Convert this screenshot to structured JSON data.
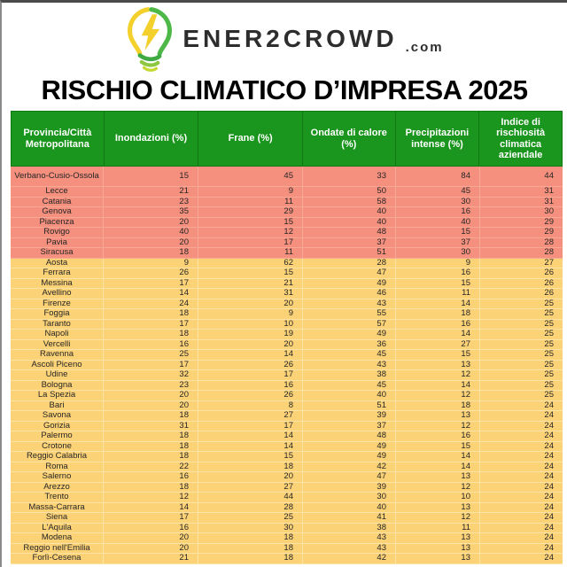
{
  "logo": {
    "brand": "ENER2CROWD",
    "suffix": ".com",
    "icon": "lightbulb-leaf-icon"
  },
  "title": "RISCHIO CLIMATICO D’IMPRESA 2025",
  "colors": {
    "header_green": "#1a951d",
    "high_risk_band": "#f5907e",
    "medium_risk_band": "#fcd277",
    "logo_yellow": "#f3d02c",
    "logo_green": "#4db848"
  },
  "table": {
    "columns": [
      "Provincia/Città Metropolitana",
      "Inondazioni (%)",
      "Frane (%)",
      "Ondate di calore (%)",
      "Precipitazioni intense (%)",
      "Indice di rischiosità climatica aziendale"
    ],
    "rows": [
      {
        "provincia": "Verbano-Cusio-Ossola",
        "inondazioni": 15,
        "frane": 45,
        "ondate": 33,
        "precipitazioni": 84,
        "indice": 44,
        "band": "high",
        "tall": true
      },
      {
        "provincia": "Lecce",
        "inondazioni": 21,
        "frane": 9,
        "ondate": 50,
        "precipitazioni": 45,
        "indice": 31,
        "band": "high"
      },
      {
        "provincia": "Catania",
        "inondazioni": 23,
        "frane": 11,
        "ondate": 58,
        "precipitazioni": 30,
        "indice": 31,
        "band": "high"
      },
      {
        "provincia": "Genova",
        "inondazioni": 35,
        "frane": 29,
        "ondate": 40,
        "precipitazioni": 16,
        "indice": 30,
        "band": "high"
      },
      {
        "provincia": "Piacenza",
        "inondazioni": 20,
        "frane": 15,
        "ondate": 40,
        "precipitazioni": 40,
        "indice": 29,
        "band": "high"
      },
      {
        "provincia": "Rovigo",
        "inondazioni": 40,
        "frane": 12,
        "ondate": 48,
        "precipitazioni": 15,
        "indice": 29,
        "band": "high"
      },
      {
        "provincia": "Pavia",
        "inondazioni": 20,
        "frane": 17,
        "ondate": 37,
        "precipitazioni": 37,
        "indice": 28,
        "band": "high"
      },
      {
        "provincia": "Siracusa",
        "inondazioni": 18,
        "frane": 11,
        "ondate": 51,
        "precipitazioni": 30,
        "indice": 28,
        "band": "high"
      },
      {
        "provincia": "Aosta",
        "inondazioni": 9,
        "frane": 62,
        "ondate": 28,
        "precipitazioni": 9,
        "indice": 27,
        "band": "medium"
      },
      {
        "provincia": "Ferrara",
        "inondazioni": 26,
        "frane": 15,
        "ondate": 47,
        "precipitazioni": 16,
        "indice": 26,
        "band": "medium"
      },
      {
        "provincia": "Messina",
        "inondazioni": 17,
        "frane": 21,
        "ondate": 49,
        "precipitazioni": 15,
        "indice": 26,
        "band": "medium"
      },
      {
        "provincia": "Avellino",
        "inondazioni": 14,
        "frane": 31,
        "ondate": 46,
        "precipitazioni": 11,
        "indice": 26,
        "band": "medium"
      },
      {
        "provincia": "Firenze",
        "inondazioni": 24,
        "frane": 20,
        "ondate": 43,
        "precipitazioni": 14,
        "indice": 25,
        "band": "medium"
      },
      {
        "provincia": "Foggia",
        "inondazioni": 18,
        "frane": 9,
        "ondate": 55,
        "precipitazioni": 18,
        "indice": 25,
        "band": "medium"
      },
      {
        "provincia": "Taranto",
        "inondazioni": 17,
        "frane": 10,
        "ondate": 57,
        "precipitazioni": 16,
        "indice": 25,
        "band": "medium"
      },
      {
        "provincia": "Napoli",
        "inondazioni": 18,
        "frane": 19,
        "ondate": 49,
        "precipitazioni": 14,
        "indice": 25,
        "band": "medium"
      },
      {
        "provincia": "Vercelli",
        "inondazioni": 16,
        "frane": 20,
        "ondate": 36,
        "precipitazioni": 27,
        "indice": 25,
        "band": "medium"
      },
      {
        "provincia": "Ravenna",
        "inondazioni": 25,
        "frane": 14,
        "ondate": 45,
        "precipitazioni": 15,
        "indice": 25,
        "band": "medium"
      },
      {
        "provincia": "Ascoli Piceno",
        "inondazioni": 17,
        "frane": 26,
        "ondate": 43,
        "precipitazioni": 13,
        "indice": 25,
        "band": "medium"
      },
      {
        "provincia": "Udine",
        "inondazioni": 32,
        "frane": 17,
        "ondate": 38,
        "precipitazioni": 12,
        "indice": 25,
        "band": "medium"
      },
      {
        "provincia": "Bologna",
        "inondazioni": 23,
        "frane": 16,
        "ondate": 45,
        "precipitazioni": 14,
        "indice": 25,
        "band": "medium"
      },
      {
        "provincia": "La Spezia",
        "inondazioni": 20,
        "frane": 26,
        "ondate": 40,
        "precipitazioni": 12,
        "indice": 25,
        "band": "medium"
      },
      {
        "provincia": "Bari",
        "inondazioni": 20,
        "frane": 8,
        "ondate": 51,
        "precipitazioni": 18,
        "indice": 24,
        "band": "medium"
      },
      {
        "provincia": "Savona",
        "inondazioni": 18,
        "frane": 27,
        "ondate": 39,
        "precipitazioni": 13,
        "indice": 24,
        "band": "medium"
      },
      {
        "provincia": "Gorizia",
        "inondazioni": 31,
        "frane": 17,
        "ondate": 37,
        "precipitazioni": 12,
        "indice": 24,
        "band": "medium"
      },
      {
        "provincia": "Palermo",
        "inondazioni": 18,
        "frane": 14,
        "ondate": 48,
        "precipitazioni": 16,
        "indice": 24,
        "band": "medium"
      },
      {
        "provincia": "Crotone",
        "inondazioni": 18,
        "frane": 14,
        "ondate": 49,
        "precipitazioni": 15,
        "indice": 24,
        "band": "medium"
      },
      {
        "provincia": "Reggio Calabria",
        "inondazioni": 18,
        "frane": 15,
        "ondate": 49,
        "precipitazioni": 14,
        "indice": 24,
        "band": "medium"
      },
      {
        "provincia": "Roma",
        "inondazioni": 22,
        "frane": 18,
        "ondate": 42,
        "precipitazioni": 14,
        "indice": 24,
        "band": "medium"
      },
      {
        "provincia": "Salerno",
        "inondazioni": 16,
        "frane": 20,
        "ondate": 47,
        "precipitazioni": 13,
        "indice": 24,
        "band": "medium"
      },
      {
        "provincia": "Arezzo",
        "inondazioni": 18,
        "frane": 27,
        "ondate": 39,
        "precipitazioni": 12,
        "indice": 24,
        "band": "medium"
      },
      {
        "provincia": "Trento",
        "inondazioni": 12,
        "frane": 44,
        "ondate": 30,
        "precipitazioni": 10,
        "indice": 24,
        "band": "medium"
      },
      {
        "provincia": "Massa-Carrara",
        "inondazioni": 14,
        "frane": 28,
        "ondate": 40,
        "precipitazioni": 13,
        "indice": 24,
        "band": "medium"
      },
      {
        "provincia": "Siena",
        "inondazioni": 17,
        "frane": 25,
        "ondate": 41,
        "precipitazioni": 12,
        "indice": 24,
        "band": "medium"
      },
      {
        "provincia": "L'Aquila",
        "inondazioni": 16,
        "frane": 30,
        "ondate": 38,
        "precipitazioni": 11,
        "indice": 24,
        "band": "medium"
      },
      {
        "provincia": "Modena",
        "inondazioni": 20,
        "frane": 18,
        "ondate": 43,
        "precipitazioni": 13,
        "indice": 24,
        "band": "medium"
      },
      {
        "provincia": "Reggio nell'Emilia",
        "inondazioni": 20,
        "frane": 18,
        "ondate": 43,
        "precipitazioni": 13,
        "indice": 24,
        "band": "medium"
      },
      {
        "provincia": "Forlì-Cesena",
        "inondazioni": 21,
        "frane": 18,
        "ondate": 42,
        "precipitazioni": 13,
        "indice": 24,
        "band": "medium"
      }
    ]
  }
}
